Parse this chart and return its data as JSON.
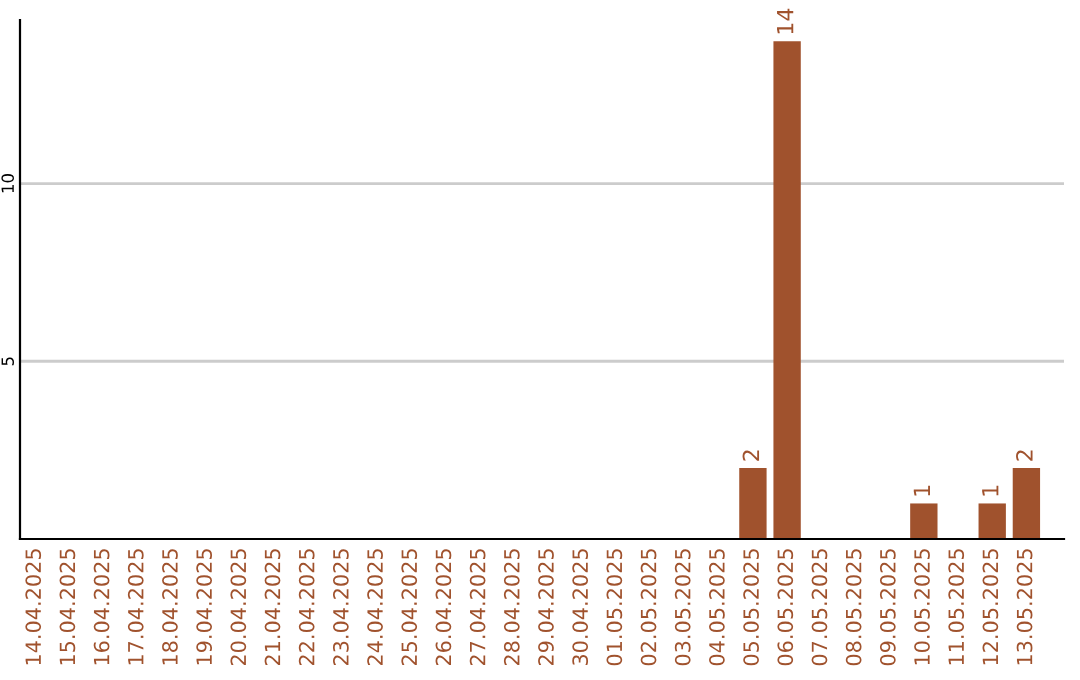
{
  "chart_data": {
    "type": "bar",
    "categories": [
      "14.04.2025",
      "15.04.2025",
      "16.04.2025",
      "17.04.2025",
      "18.04.2025",
      "19.04.2025",
      "20.04.2025",
      "21.04.2025",
      "22.04.2025",
      "23.04.2025",
      "24.04.2025",
      "25.04.2025",
      "26.04.2025",
      "27.04.2025",
      "28.04.2025",
      "29.04.2025",
      "30.04.2025",
      "01.05.2025",
      "02.05.2025",
      "03.05.2025",
      "04.05.2025",
      "05.05.2025",
      "06.05.2025",
      "07.05.2025",
      "08.05.2025",
      "09.05.2025",
      "10.05.2025",
      "11.05.2025",
      "12.05.2025",
      "13.05.2025"
    ],
    "values": [
      0,
      0,
      0,
      0,
      0,
      0,
      0,
      0,
      0,
      0,
      0,
      0,
      0,
      0,
      0,
      0,
      0,
      0,
      0,
      0,
      0,
      2,
      14,
      0,
      0,
      0,
      1,
      0,
      1,
      2
    ],
    "value_labels": [
      null,
      null,
      null,
      null,
      null,
      null,
      null,
      null,
      null,
      null,
      null,
      null,
      null,
      null,
      null,
      null,
      null,
      null,
      null,
      null,
      null,
      "2",
      "14",
      null,
      null,
      null,
      "1",
      null,
      "1",
      "2"
    ],
    "color": "#a0522d",
    "ylim": [
      0,
      14.6
    ],
    "yticks": [
      5,
      10
    ],
    "grid": "y",
    "legend": false
  }
}
